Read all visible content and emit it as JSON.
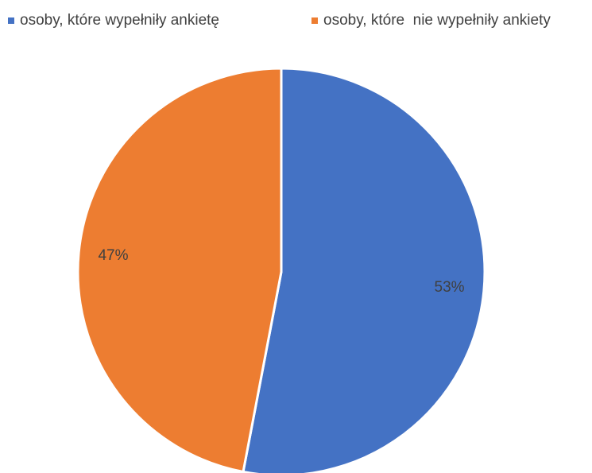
{
  "chart_data": {
    "type": "pie",
    "categories": [
      "osoby, które wypełniły ankietę",
      "osoby, które  nie wypełniły ankiety"
    ],
    "values": [
      53,
      47
    ],
    "labels": [
      "53%",
      "47%"
    ],
    "colors": [
      "#4472C4",
      "#ED7D31"
    ],
    "legend_position": "top",
    "title": ""
  }
}
